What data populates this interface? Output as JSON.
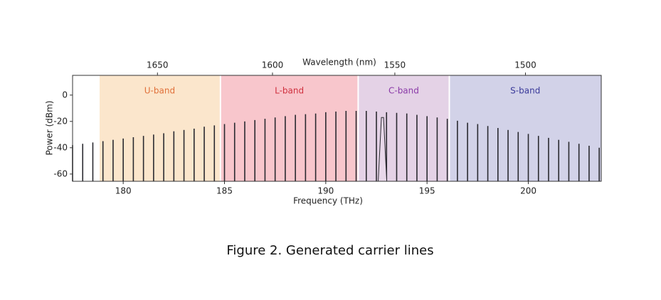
{
  "chart_data": {
    "type": "comb",
    "x_label": "Frequency (THz)",
    "y_label": "Power (dBm)",
    "x2_label": "Wavelength (nm)",
    "xlim": [
      177.5,
      203.6
    ],
    "ylim": [
      -65.5,
      15
    ],
    "xticks": [
      180,
      185,
      190,
      195,
      200
    ],
    "yticks": [
      0,
      -20,
      -40,
      -60
    ],
    "x2ticks": [
      {
        "value": 181.69,
        "label": "1650"
      },
      {
        "value": 187.37,
        "label": "1600"
      },
      {
        "value": 193.41,
        "label": "1550"
      },
      {
        "value": 199.86,
        "label": "1500"
      }
    ],
    "bands": [
      {
        "name": "U-band",
        "start": 178.8,
        "end": 184.8,
        "color": "#fbe6cc",
        "text_color": "#e0703a"
      },
      {
        "name": "L-band",
        "start": 184.8,
        "end": 191.6,
        "color": "#f8c6cc",
        "text_color": "#d0303e"
      },
      {
        "name": "C-band",
        "start": 191.6,
        "end": 196.1,
        "color": "#e4d2e6",
        "text_color": "#8a3aa8"
      },
      {
        "name": "S-band",
        "start": 196.1,
        "end": 203.6,
        "color": "#d2d2e8",
        "text_color": "#3a3a9a"
      }
    ],
    "color": "#2a2a30",
    "x": [
      177.5,
      178,
      178.5,
      179,
      179.5,
      180,
      180.5,
      181,
      181.5,
      182,
      182.5,
      183,
      183.5,
      184,
      184.5,
      185,
      185.5,
      186,
      186.5,
      187,
      187.5,
      188,
      188.5,
      189,
      189.5,
      190,
      190.5,
      191,
      191.5,
      192,
      192.5,
      193,
      193.5,
      194,
      194.5,
      195,
      195.5,
      196,
      196.5,
      197,
      197.5,
      198,
      198.5,
      199,
      199.5,
      200,
      200.5,
      201,
      201.5,
      202,
      202.5,
      203,
      203.5
    ],
    "values": [
      -38,
      -37,
      -36,
      -35,
      -34,
      -33,
      -32,
      -31,
      -30,
      -29,
      -27.5,
      -26.5,
      -25.5,
      -24,
      -23,
      -22,
      -21,
      -20,
      -19,
      -18,
      -17,
      -16,
      -15,
      -14.5,
      -14,
      -13,
      -12.5,
      -12,
      -12,
      -12,
      -12.5,
      -13,
      -13.5,
      -14,
      -15,
      -16,
      -17,
      -18,
      -19.5,
      -21,
      -22,
      -23.5,
      -25,
      -26.5,
      -28,
      -29.5,
      -31,
      -32.5,
      -34,
      -35.5,
      -37,
      -38.5,
      -40
    ],
    "carrier": {
      "x": 192.8,
      "value": -17
    }
  },
  "caption": "Figure 2. Generated carrier lines"
}
